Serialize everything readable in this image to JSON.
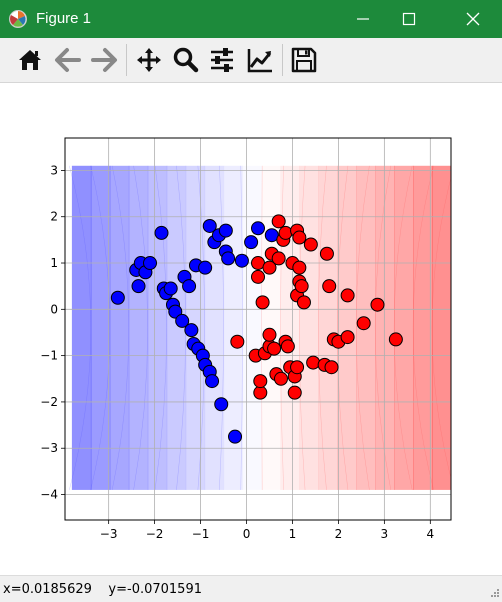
{
  "window": {
    "title": "Figure 1",
    "titlebar_color": "#1d8a3b"
  },
  "toolbar": {
    "buttons": [
      {
        "name": "home",
        "icon": "home-icon"
      },
      {
        "name": "back",
        "icon": "arrow-left-icon"
      },
      {
        "name": "forward",
        "icon": "arrow-right-icon"
      },
      {
        "name": "pan",
        "icon": "move-icon"
      },
      {
        "name": "zoom",
        "icon": "magnifier-icon"
      },
      {
        "name": "configure-subplots",
        "icon": "sliders-icon"
      },
      {
        "name": "edit-axis",
        "icon": "chart-line-icon"
      },
      {
        "name": "save",
        "icon": "floppy-disk-icon"
      }
    ]
  },
  "status": {
    "text": "x=0.0185629    y=-0.0701591"
  },
  "chart_data": {
    "type": "scatter",
    "title": "",
    "xlabel": "",
    "ylabel": "",
    "xlim": [
      -3.95,
      4.45
    ],
    "ylim": [
      -4.55,
      3.7
    ],
    "x_ticks": [
      -3,
      -2,
      -1,
      0,
      1,
      2,
      3,
      4
    ],
    "y_ticks": [
      -4,
      -3,
      -2,
      -1,
      0,
      1,
      2,
      3
    ],
    "grid": true,
    "background": {
      "type": "decision-function contourf",
      "colormap": "bwr",
      "x_range": [
        -3.8,
        4.45
      ],
      "y_range": [
        -3.9,
        3.1
      ],
      "levels": 20
    },
    "series": [
      {
        "color": "#0000ff",
        "edgecolor": "#000000",
        "points": [
          [
            -2.8,
            0.25
          ],
          [
            -2.4,
            0.85
          ],
          [
            -2.35,
            0.5
          ],
          [
            -2.3,
            1.0
          ],
          [
            -2.2,
            0.8
          ],
          [
            -2.1,
            1.0
          ],
          [
            -1.85,
            1.65
          ],
          [
            -1.8,
            0.45
          ],
          [
            -1.75,
            0.35
          ],
          [
            -1.65,
            0.45
          ],
          [
            -1.6,
            0.1
          ],
          [
            -1.55,
            -0.05
          ],
          [
            -1.4,
            -0.25
          ],
          [
            -1.35,
            0.7
          ],
          [
            -1.25,
            0.5
          ],
          [
            -1.2,
            -0.45
          ],
          [
            -1.15,
            -0.75
          ],
          [
            -1.1,
            0.95
          ],
          [
            -1.05,
            -0.85
          ],
          [
            -0.95,
            -1.0
          ],
          [
            -0.9,
            0.9
          ],
          [
            -0.9,
            -1.2
          ],
          [
            -0.8,
            -1.35
          ],
          [
            -0.75,
            -1.55
          ],
          [
            -0.8,
            1.8
          ],
          [
            -0.7,
            1.45
          ],
          [
            -0.6,
            1.6
          ],
          [
            -0.55,
            -2.05
          ],
          [
            -0.45,
            1.7
          ],
          [
            -0.45,
            1.25
          ],
          [
            -0.4,
            1.1
          ],
          [
            -0.25,
            -2.75
          ],
          [
            -0.1,
            1.05
          ],
          [
            0.1,
            1.45
          ],
          [
            0.25,
            1.75
          ],
          [
            0.55,
            1.6
          ]
        ]
      },
      {
        "color": "#ff0000",
        "edgecolor": "#000000",
        "points": [
          [
            -0.2,
            -0.7
          ],
          [
            0.2,
            -1.0
          ],
          [
            0.25,
            0.7
          ],
          [
            0.25,
            1.0
          ],
          [
            0.3,
            -1.8
          ],
          [
            0.3,
            -1.55
          ],
          [
            0.35,
            0.15
          ],
          [
            0.4,
            -0.95
          ],
          [
            0.5,
            -0.8
          ],
          [
            0.5,
            -0.55
          ],
          [
            0.5,
            0.9
          ],
          [
            0.55,
            1.2
          ],
          [
            0.6,
            -0.85
          ],
          [
            0.65,
            -1.4
          ],
          [
            0.7,
            1.9
          ],
          [
            0.7,
            1.1
          ],
          [
            0.75,
            -1.5
          ],
          [
            0.8,
            1.5
          ],
          [
            0.85,
            1.65
          ],
          [
            0.85,
            -0.7
          ],
          [
            0.9,
            -0.8
          ],
          [
            0.95,
            -1.25
          ],
          [
            1.0,
            1.0
          ],
          [
            1.05,
            -1.8
          ],
          [
            1.05,
            -1.45
          ],
          [
            1.1,
            -1.25
          ],
          [
            1.1,
            0.3
          ],
          [
            1.1,
            1.7
          ],
          [
            1.15,
            1.55
          ],
          [
            1.15,
            0.9
          ],
          [
            1.15,
            0.6
          ],
          [
            1.2,
            0.5
          ],
          [
            1.25,
            0.15
          ],
          [
            1.4,
            1.4
          ],
          [
            1.45,
            -1.15
          ],
          [
            1.7,
            -1.2
          ],
          [
            1.75,
            1.2
          ],
          [
            1.8,
            0.5
          ],
          [
            1.85,
            -1.25
          ],
          [
            1.9,
            -0.65
          ],
          [
            2.0,
            -0.7
          ],
          [
            2.2,
            0.3
          ],
          [
            2.2,
            -0.6
          ],
          [
            2.55,
            -0.3
          ],
          [
            2.85,
            0.1
          ],
          [
            3.25,
            -0.65
          ]
        ]
      }
    ]
  }
}
